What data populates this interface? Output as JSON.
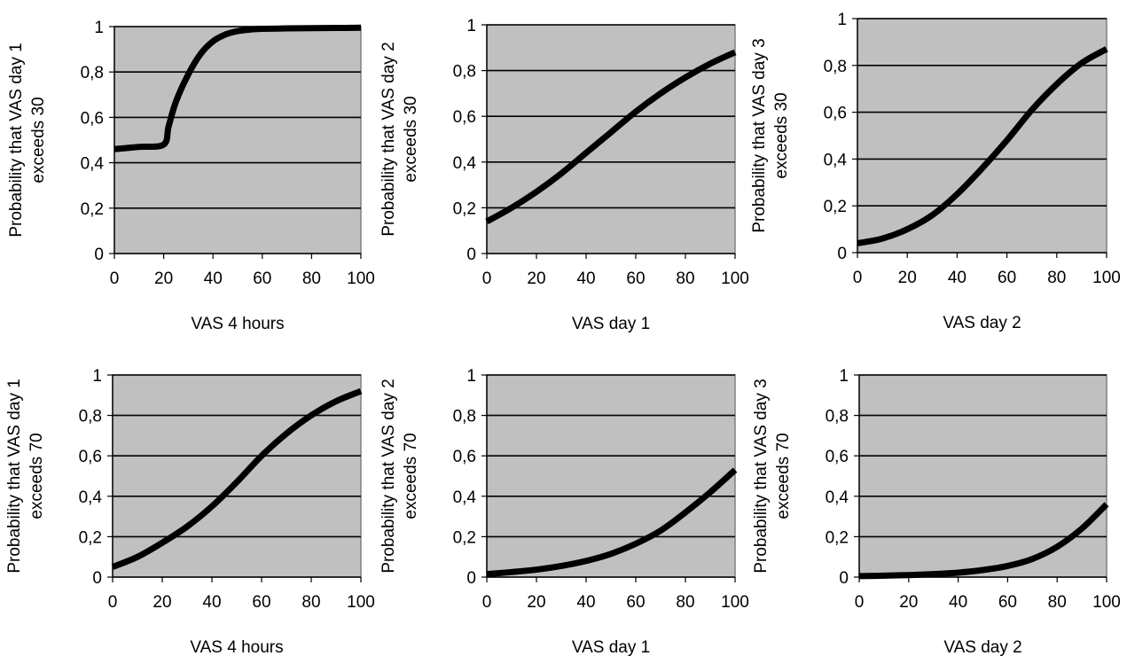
{
  "chart_data": [
    {
      "type": "line",
      "xlabel": "VAS 4 hours",
      "ylabel": [
        "Probability that VAS day 1",
        "exceeds 30"
      ],
      "xlim": [
        0,
        100
      ],
      "ylim": [
        0,
        1
      ],
      "xticks": [
        "0",
        "20",
        "40",
        "60",
        "80",
        "100"
      ],
      "yticks": [
        "0",
        "0,2",
        "0,4",
        "0,6",
        "0,8",
        "1"
      ],
      "grid": "horizontal",
      "x": [
        0,
        10,
        20,
        22,
        25,
        30,
        35,
        40,
        45,
        50,
        55,
        60,
        70,
        80,
        90,
        100
      ],
      "y": [
        0.46,
        0.47,
        0.48,
        0.56,
        0.67,
        0.79,
        0.88,
        0.935,
        0.965,
        0.98,
        0.987,
        0.99,
        0.992,
        0.993,
        0.994,
        0.995
      ]
    },
    {
      "type": "line",
      "xlabel": "VAS day 1",
      "ylabel": [
        "Probability that VAS day 2",
        "exceeds 30"
      ],
      "xlim": [
        0,
        100
      ],
      "ylim": [
        0,
        1
      ],
      "xticks": [
        "0",
        "20",
        "40",
        "60",
        "80",
        "100"
      ],
      "yticks": [
        "0",
        "0,2",
        "0,4",
        "0,6",
        "0,8",
        "1"
      ],
      "grid": "horizontal",
      "x": [
        0,
        10,
        20,
        30,
        40,
        50,
        60,
        70,
        80,
        90,
        100
      ],
      "y": [
        0.14,
        0.2,
        0.27,
        0.35,
        0.44,
        0.53,
        0.62,
        0.7,
        0.77,
        0.83,
        0.88
      ]
    },
    {
      "type": "line",
      "xlabel": "VAS day 2",
      "ylabel": [
        "Probability that VAS day 3",
        "exceeds 30"
      ],
      "xlim": [
        0,
        100
      ],
      "ylim": [
        0,
        1
      ],
      "xticks": [
        "0",
        "20",
        "40",
        "60",
        "80",
        "100"
      ],
      "yticks": [
        "0",
        "0,2",
        "0,4",
        "0,6",
        "0,8",
        "1"
      ],
      "grid": "horizontal",
      "x": [
        0,
        10,
        20,
        30,
        40,
        50,
        60,
        70,
        80,
        90,
        100
      ],
      "y": [
        0.04,
        0.06,
        0.1,
        0.16,
        0.25,
        0.36,
        0.48,
        0.61,
        0.72,
        0.81,
        0.87
      ]
    },
    {
      "type": "line",
      "xlabel": "VAS 4 hours",
      "ylabel": [
        "Probability that VAS day 1",
        "exceeds 70"
      ],
      "xlim": [
        0,
        100
      ],
      "ylim": [
        0,
        1
      ],
      "xticks": [
        "0",
        "20",
        "40",
        "60",
        "80",
        "100"
      ],
      "yticks": [
        "0",
        "0,2",
        "0,4",
        "0,6",
        "0,8",
        "1"
      ],
      "grid": "horizontal",
      "x": [
        0,
        10,
        20,
        30,
        40,
        50,
        60,
        70,
        80,
        90,
        100
      ],
      "y": [
        0.05,
        0.1,
        0.17,
        0.25,
        0.35,
        0.47,
        0.6,
        0.71,
        0.8,
        0.87,
        0.92
      ]
    },
    {
      "type": "line",
      "xlabel": "VAS day 1",
      "ylabel": [
        "Probability that VAS day 2",
        "exceeds 70"
      ],
      "xlim": [
        0,
        100
      ],
      "ylim": [
        0,
        1
      ],
      "xticks": [
        "0",
        "20",
        "40",
        "60",
        "80",
        "100"
      ],
      "yticks": [
        "0",
        "0,2",
        "0,4",
        "0,6",
        "0,8",
        "1"
      ],
      "grid": "horizontal",
      "x": [
        0,
        10,
        20,
        30,
        40,
        50,
        60,
        70,
        80,
        90,
        100
      ],
      "y": [
        0.015,
        0.025,
        0.037,
        0.055,
        0.08,
        0.115,
        0.165,
        0.23,
        0.32,
        0.42,
        0.53
      ]
    },
    {
      "type": "line",
      "xlabel": "VAS day 2",
      "ylabel": [
        "Probability that VAS day 3",
        "exceeds 70"
      ],
      "xlim": [
        0,
        100
      ],
      "ylim": [
        0,
        1
      ],
      "xticks": [
        "0",
        "20",
        "40",
        "60",
        "80",
        "100"
      ],
      "yticks": [
        "0",
        "0,2",
        "0,4",
        "0,6",
        "0,8",
        "1"
      ],
      "grid": "horizontal",
      "x": [
        0,
        10,
        20,
        30,
        40,
        50,
        60,
        70,
        80,
        90,
        100
      ],
      "y": [
        0.005,
        0.007,
        0.01,
        0.015,
        0.022,
        0.035,
        0.055,
        0.09,
        0.15,
        0.24,
        0.36
      ]
    }
  ],
  "colors": {
    "plot_background": "#c0c0c0",
    "plot_border": "#808080",
    "gridline": "#000000",
    "series_line": "#000000"
  }
}
